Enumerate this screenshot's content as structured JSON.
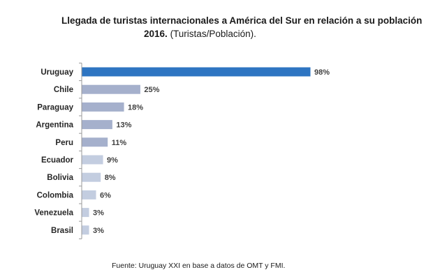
{
  "chart_data": {
    "type": "bar",
    "orientation": "horizontal",
    "title_bold": "Llegada de turistas internacionales a América del Sur en relación a su población",
    "title_year": "2016.",
    "title_suffix": "(Turistas/Población).",
    "categories": [
      "Uruguay",
      "Chile",
      "Paraguay",
      "Argentina",
      "Peru",
      "Ecuador",
      "Bolivia",
      "Colombia",
      "Venezuela",
      "Brasil"
    ],
    "values": [
      98,
      25,
      18,
      13,
      11,
      9,
      8,
      6,
      3,
      3
    ],
    "value_labels": [
      "98%",
      "25%",
      "18%",
      "13%",
      "11%",
      "9%",
      "8%",
      "6%",
      "3%",
      "3%"
    ],
    "bar_colors": [
      "#2e75c2",
      "#a5b0cc",
      "#a5b0cc",
      "#a5b0cc",
      "#a5b0cc",
      "#c3cde0",
      "#c3cde0",
      "#c3cde0",
      "#c3cde0",
      "#c3cde0"
    ],
    "xlim": [
      0,
      100
    ],
    "grid": false,
    "legend": "none"
  },
  "source": "Fuente: Uruguay XXI en base a datos de OMT y FMI."
}
